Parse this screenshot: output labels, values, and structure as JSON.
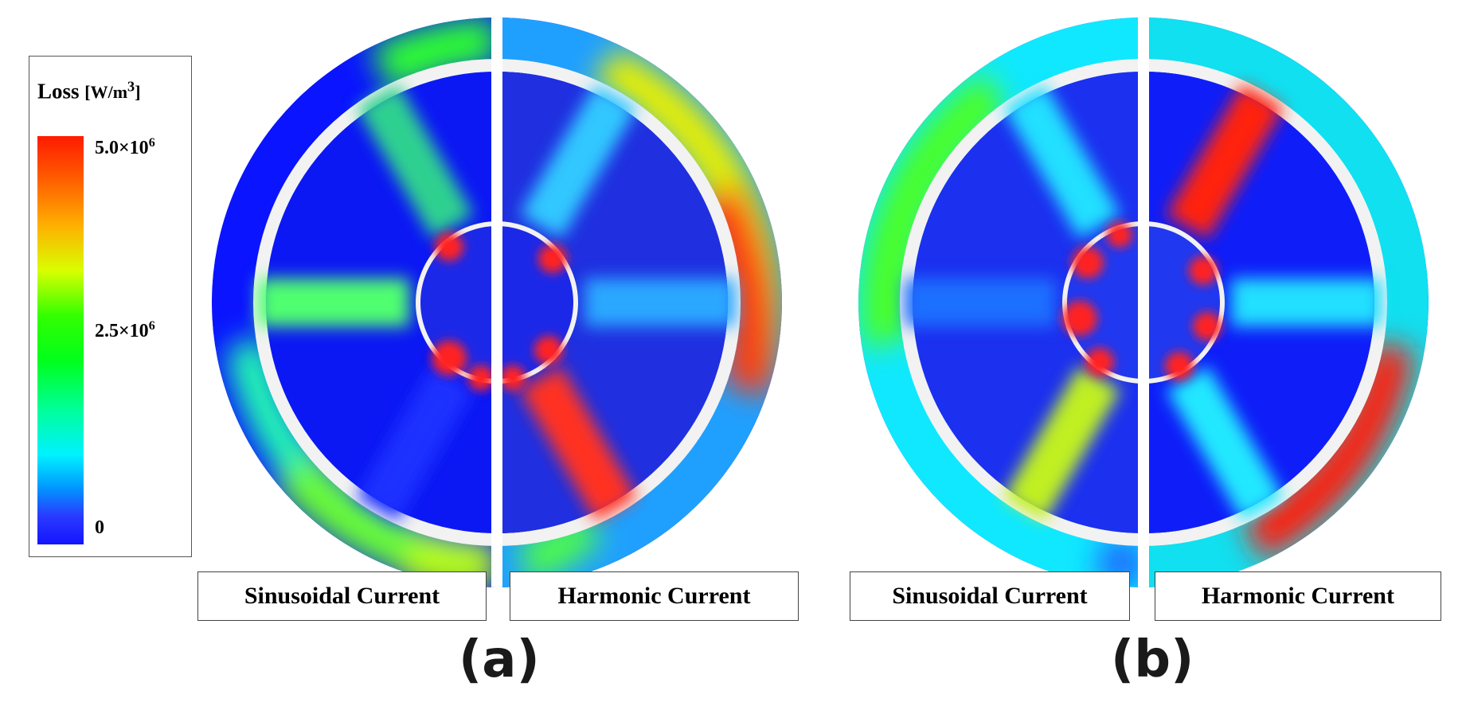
{
  "legend": {
    "title": "Loss",
    "unit_prefix": "[W/m",
    "unit_exp": "3",
    "unit_suffix": "]",
    "ticks": [
      {
        "mantissa": "5.0×10",
        "exp": "6"
      },
      {
        "mantissa": "2.5×10",
        "exp": "6"
      },
      {
        "mantissa": "0",
        "exp": ""
      }
    ],
    "colors": {
      "max": "#ff1a00",
      "mid": "#00ff1c",
      "min": "#1414ff"
    }
  },
  "panels": [
    {
      "label": "(a)",
      "left_caption": "Sinusoidal Current",
      "right_caption": "Harmonic Current"
    },
    {
      "label": "(b)",
      "left_caption": "Sinusoidal Current",
      "right_caption": "Harmonic Current"
    }
  ]
}
